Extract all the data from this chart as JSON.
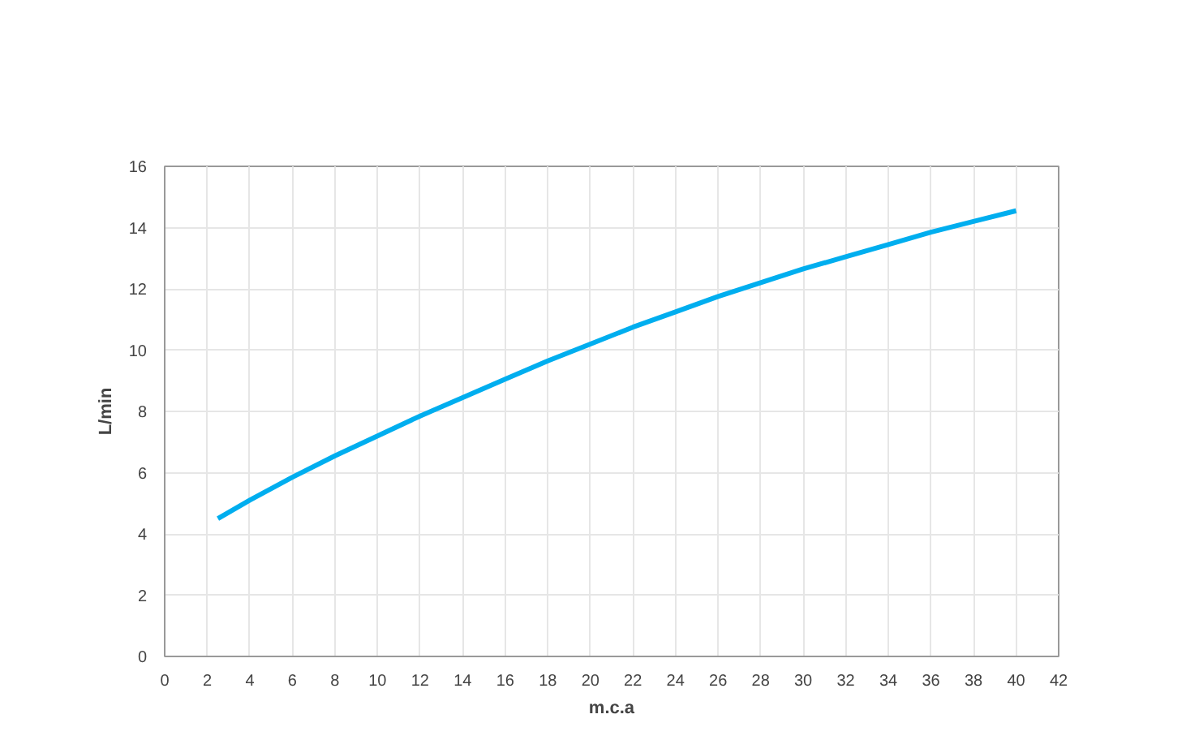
{
  "chart_data": {
    "type": "line",
    "xlabel": "m.c.a",
    "ylabel": "L/min",
    "x": [
      2.5,
      4,
      6,
      8,
      10,
      12,
      14,
      16,
      18,
      20,
      22,
      24,
      26,
      28,
      30,
      32,
      34,
      36,
      38,
      40
    ],
    "series": [
      {
        "color": "#00aeef",
        "values": [
          4.5,
          5.1,
          5.85,
          6.55,
          7.2,
          7.85,
          8.45,
          9.05,
          9.65,
          10.2,
          10.75,
          11.25,
          11.75,
          12.2,
          12.65,
          13.05,
          13.45,
          13.85,
          14.2,
          14.55
        ]
      }
    ],
    "xlim": [
      0,
      42
    ],
    "xticks": [
      0,
      2,
      4,
      6,
      8,
      10,
      12,
      14,
      16,
      18,
      20,
      22,
      24,
      26,
      28,
      30,
      32,
      34,
      36,
      38,
      40,
      42
    ],
    "ylim": [
      0,
      16
    ],
    "yticks": [
      0,
      2,
      4,
      6,
      8,
      10,
      12,
      14,
      16
    ],
    "grid": true,
    "marker": "none",
    "line_style": "solid"
  }
}
